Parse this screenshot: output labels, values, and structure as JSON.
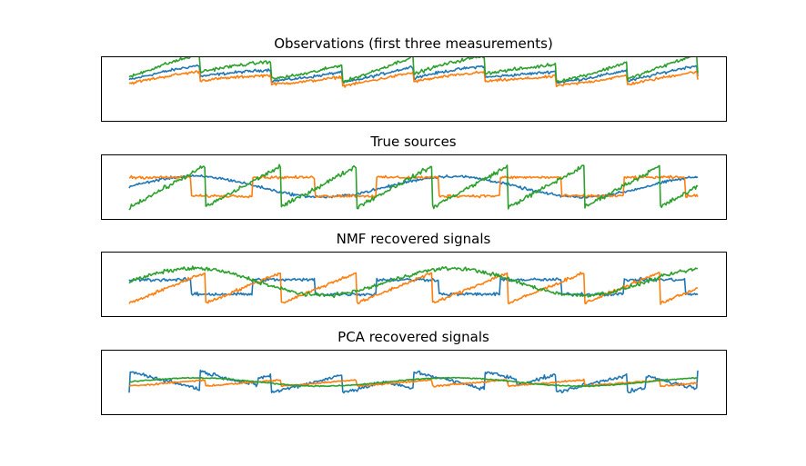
{
  "figure": {
    "background": "#ffffff"
  },
  "chart_data": [
    {
      "type": "line",
      "title": "Observations (first three measurements)",
      "xlabel": "",
      "ylabel": "",
      "ticks_visible": false,
      "grid": false,
      "series": [
        {
          "color": "#1f77b4",
          "kind": "obs",
          "amp": 0.55,
          "offset": 0.42,
          "noise": 0.05
        },
        {
          "color": "#ff7f0e",
          "kind": "obs",
          "amp": 0.45,
          "offset": 0.25,
          "noise": 0.05
        },
        {
          "color": "#2ca02c",
          "kind": "obs",
          "amp": 0.85,
          "offset": 0.55,
          "noise": 0.06
        }
      ]
    },
    {
      "type": "line",
      "title": "True sources",
      "xlabel": "",
      "ylabel": "",
      "ticks_visible": false,
      "grid": false,
      "series": [
        {
          "color": "#1f77b4",
          "kind": "sine",
          "amp": 0.5,
          "offset": 0.0,
          "noise": 0.05
        },
        {
          "color": "#ff7f0e",
          "kind": "square",
          "amp": 0.45,
          "offset": 0.0,
          "noise": 0.05
        },
        {
          "color": "#2ca02c",
          "kind": "saw",
          "amp": 1.0,
          "offset": 0.0,
          "noise": 0.08
        }
      ]
    },
    {
      "type": "line",
      "title": "NMF recovered signals",
      "xlabel": "",
      "ylabel": "",
      "ticks_visible": false,
      "grid": false,
      "series": [
        {
          "color": "#1f77b4",
          "kind": "square",
          "amp": 0.35,
          "offset": -0.15,
          "noise": 0.06
        },
        {
          "color": "#ff7f0e",
          "kind": "saw",
          "amp": 0.75,
          "offset": -0.2,
          "noise": 0.06
        },
        {
          "color": "#2ca02c",
          "kind": "sine",
          "amp": 0.65,
          "offset": 0.1,
          "noise": 0.07
        }
      ]
    },
    {
      "type": "line",
      "title": "PCA recovered signals",
      "xlabel": "",
      "ylabel": "",
      "ticks_visible": false,
      "grid": false,
      "series": [
        {
          "color": "#1f77b4",
          "kind": "pca",
          "amp": 0.85,
          "offset": 0.0,
          "noise": 0.07
        },
        {
          "color": "#ff7f0e",
          "kind": "saw",
          "amp": 0.15,
          "offset": -0.05,
          "noise": 0.03
        },
        {
          "color": "#2ca02c",
          "kind": "sine",
          "amp": 0.2,
          "offset": 0.0,
          "noise": 0.02
        }
      ]
    }
  ]
}
